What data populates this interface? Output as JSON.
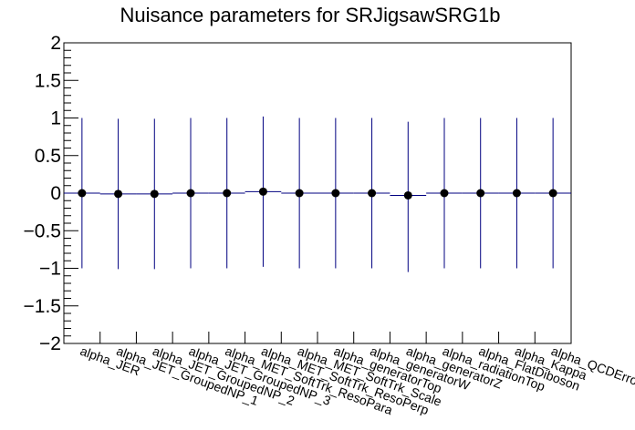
{
  "chart_data": {
    "type": "scatter",
    "title": "Nuisance parameters for SRJigsawSRG1b",
    "xlabel": "",
    "ylabel": "",
    "ylim": [
      -2,
      2
    ],
    "yticks": [
      "2",
      "1.5",
      "1",
      "0.5",
      "0",
      "−0.5",
      "−1",
      "−1.5",
      "−2"
    ],
    "grid": false,
    "categories": [
      "alpha_JER",
      "alpha_JET_GroupedNP_1",
      "alpha_JET_GroupedNP_2",
      "alpha_JET_GroupedNP_3",
      "alpha_MET_SoftTrk_ResoPara",
      "alpha_MET_SoftTrk_ResoPerp",
      "alpha_MET_SoftTrk_Scale",
      "alpha_generatorTop",
      "alpha_generatorW",
      "alpha_generatorZ",
      "alpha_radiationTop",
      "alpha_FlatDiboson",
      "alpha_Kappa",
      "alpha_QCDError"
    ],
    "values": [
      0.0,
      -0.01,
      -0.01,
      0.0,
      0.0,
      0.02,
      0.0,
      0.0,
      0.0,
      -0.03,
      0.0,
      0.0,
      0.0,
      0.0
    ],
    "err_low": [
      1.0,
      1.0,
      1.0,
      1.0,
      1.0,
      1.0,
      1.0,
      1.0,
      1.0,
      1.02,
      1.0,
      1.0,
      1.0,
      1.0
    ],
    "err_high": [
      1.0,
      1.0,
      1.0,
      1.0,
      1.0,
      1.0,
      1.0,
      1.0,
      1.0,
      0.98,
      1.0,
      1.0,
      1.0,
      1.0
    ],
    "colors": {
      "marker": "#000000",
      "error_bar": "#000080",
      "axis": "#000000"
    }
  }
}
